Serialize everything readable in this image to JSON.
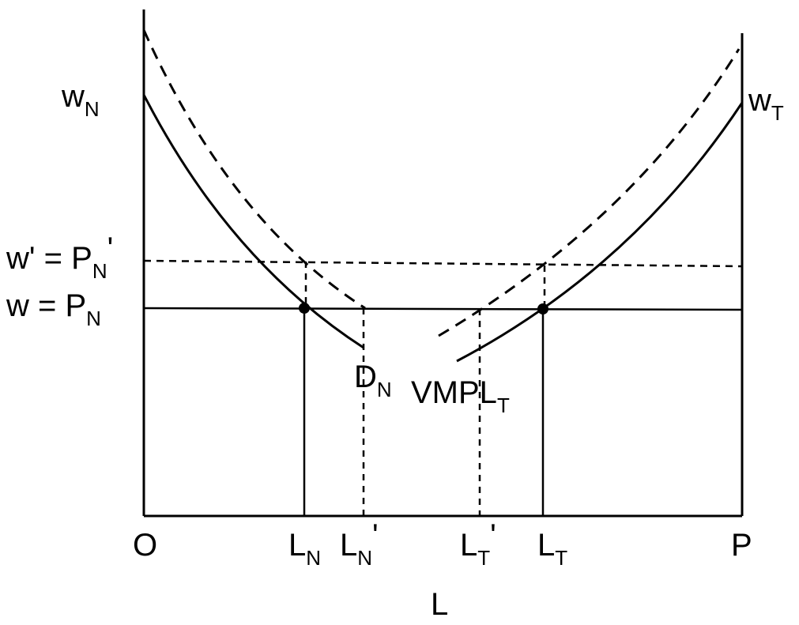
{
  "diagram": {
    "left_axis_origin": "O",
    "right_axis_origin": "P",
    "x_axis_title": "L",
    "left_axis_top_label": {
      "main": "w",
      "sub": "N"
    },
    "right_axis_top_label": {
      "main": "w",
      "sub": "T"
    },
    "wage_labels": {
      "new_wage": {
        "lhs": "w'",
        "eq": " = ",
        "main": "P",
        "sub": "N",
        "prime": "'"
      },
      "initial_wage": {
        "lhs": "w",
        "eq": " = ",
        "main": "P",
        "sub": "N"
      }
    },
    "curve_labels": {
      "nontraded_demand": {
        "main": "D",
        "sub": "N"
      },
      "traded_vmpl": {
        "main": "VMPL",
        "sub": "T"
      }
    },
    "x_tick_labels": {
      "ln_initial": {
        "main": "L",
        "sub": "N"
      },
      "ln_new": {
        "main": "L",
        "sub": "N",
        "prime": "'"
      },
      "lt_new": {
        "main": "L",
        "sub": "T",
        "prime": "'"
      },
      "lt_initial": {
        "main": "L",
        "sub": "T"
      }
    },
    "line_color": "#000000"
  }
}
